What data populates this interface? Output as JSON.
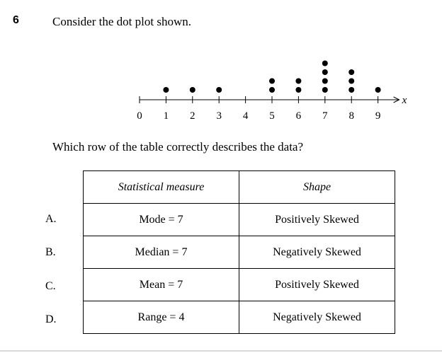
{
  "question": {
    "number": "6",
    "prompt": "Consider the dot plot shown.",
    "ask": "Which row of the table correctly describes the data?"
  },
  "table": {
    "headers": [
      "Statistical measure",
      "Shape"
    ],
    "rows": [
      {
        "letter": "A.",
        "measure": "Mode = 7",
        "shape": "Positively Skewed"
      },
      {
        "letter": "B.",
        "measure": "Median = 7",
        "shape": "Negatively Skewed"
      },
      {
        "letter": "C.",
        "measure": "Mean = 7",
        "shape": "Positively Skewed"
      },
      {
        "letter": "D.",
        "measure": "Range = 4",
        "shape": "Negatively Skewed"
      }
    ]
  },
  "chart_data": {
    "type": "scatter",
    "plot_style": "dot plot",
    "xlabel": "x",
    "x_ticks": [
      0,
      1,
      2,
      3,
      4,
      5,
      6,
      7,
      8,
      9
    ],
    "points": [
      {
        "x": 1,
        "count": 1
      },
      {
        "x": 2,
        "count": 1
      },
      {
        "x": 3,
        "count": 1
      },
      {
        "x": 5,
        "count": 2
      },
      {
        "x": 6,
        "count": 2
      },
      {
        "x": 7,
        "count": 4
      },
      {
        "x": 8,
        "count": 3
      },
      {
        "x": 9,
        "count": 1
      }
    ],
    "xlim": [
      0,
      9
    ],
    "grid": false,
    "dot_color": "#000000"
  }
}
